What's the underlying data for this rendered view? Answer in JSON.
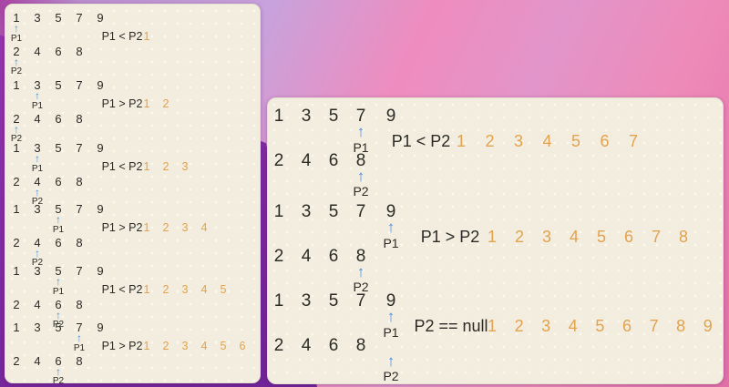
{
  "colors": {
    "paper": "#f2edde",
    "paper_dot": "#fbf8ec",
    "digit_ink": "#2c2a26",
    "arrow_blue": "#4a90e2",
    "result_orange": "#e2a24e",
    "wallpaper_magenta": "#a844a4",
    "wallpaper_light_purple": "#c8a2dc",
    "wallpaper_pink": "#ee8ab8",
    "wallpaper_dark_purple": "#681f92"
  },
  "left_panel": {
    "steps": [
      {
        "array1": [
          "1",
          "3",
          "5",
          "7",
          "9"
        ],
        "array2": [
          "2",
          "4",
          "6",
          "8"
        ],
        "p1_label": "P1",
        "p2_label": "P2",
        "p1_index": 0,
        "p2_index": 0,
        "comparison": "P1 < P2",
        "result": [
          "1"
        ]
      },
      {
        "array1": [
          "1",
          "3",
          "5",
          "7",
          "9"
        ],
        "array2": [
          "2",
          "4",
          "6",
          "8"
        ],
        "p1_label": "P1",
        "p2_label": "P2",
        "p1_index": 1,
        "p2_index": 0,
        "comparison": "P1 > P2",
        "result": [
          "1",
          "2"
        ]
      },
      {
        "array1": [
          "1",
          "3",
          "5",
          "7",
          "9"
        ],
        "array2": [
          "2",
          "4",
          "6",
          "8"
        ],
        "p1_label": "P1",
        "p2_label": "P2",
        "p1_index": 1,
        "p2_index": 1,
        "comparison": "P1 < P2",
        "result": [
          "1",
          "2",
          "3"
        ]
      },
      {
        "array1": [
          "1",
          "3",
          "5",
          "7",
          "9"
        ],
        "array2": [
          "2",
          "4",
          "6",
          "8"
        ],
        "p1_label": "P1",
        "p2_label": "P2",
        "p1_index": 2,
        "p2_index": 1,
        "comparison": "P1 > P2",
        "result": [
          "1",
          "2",
          "3",
          "4"
        ]
      },
      {
        "array1": [
          "1",
          "3",
          "5",
          "7",
          "9"
        ],
        "array2": [
          "2",
          "4",
          "6",
          "8"
        ],
        "p1_label": "P1",
        "p2_label": "P2",
        "p1_index": 2,
        "p2_index": 2,
        "comparison": "P1 < P2",
        "result": [
          "1",
          "2",
          "3",
          "4",
          "5"
        ]
      },
      {
        "array1": [
          "1",
          "3",
          "5",
          "7",
          "9"
        ],
        "array2": [
          "2",
          "4",
          "6",
          "8"
        ],
        "p1_label": "P1",
        "p2_label": "P2",
        "p1_index": 3,
        "p2_index": 2,
        "comparison": "P1 > P2",
        "result": [
          "1",
          "2",
          "3",
          "4",
          "5",
          "6"
        ]
      }
    ]
  },
  "right_panel": {
    "steps": [
      {
        "array1": [
          "1",
          "3",
          "5",
          "7",
          "9"
        ],
        "array2": [
          "2",
          "4",
          "6",
          "8"
        ],
        "p1_label": "P1",
        "p2_label": "P2",
        "p1_index": 3,
        "p2_index": 3,
        "comparison": "P1 < P2",
        "result": [
          "1",
          "2",
          "3",
          "4",
          "5",
          "6",
          "7"
        ]
      },
      {
        "array1": [
          "1",
          "3",
          "5",
          "7",
          "9"
        ],
        "array2": [
          "2",
          "4",
          "6",
          "8"
        ],
        "p1_label": "P1",
        "p2_label": "P2",
        "p1_index": 4,
        "p2_index": 3,
        "comparison": "P1 > P2",
        "result": [
          "1",
          "2",
          "3",
          "4",
          "5",
          "6",
          "7",
          "8"
        ]
      },
      {
        "array1": [
          "1",
          "3",
          "5",
          "7",
          "9"
        ],
        "array2": [
          "2",
          "4",
          "6",
          "8"
        ],
        "p1_label": "P1",
        "p2_label": "P2",
        "p1_index": 4,
        "p2_index": 4,
        "comparison": "P2 == null",
        "result": [
          "1",
          "2",
          "3",
          "4",
          "5",
          "6",
          "7",
          "8",
          "9"
        ]
      }
    ]
  }
}
